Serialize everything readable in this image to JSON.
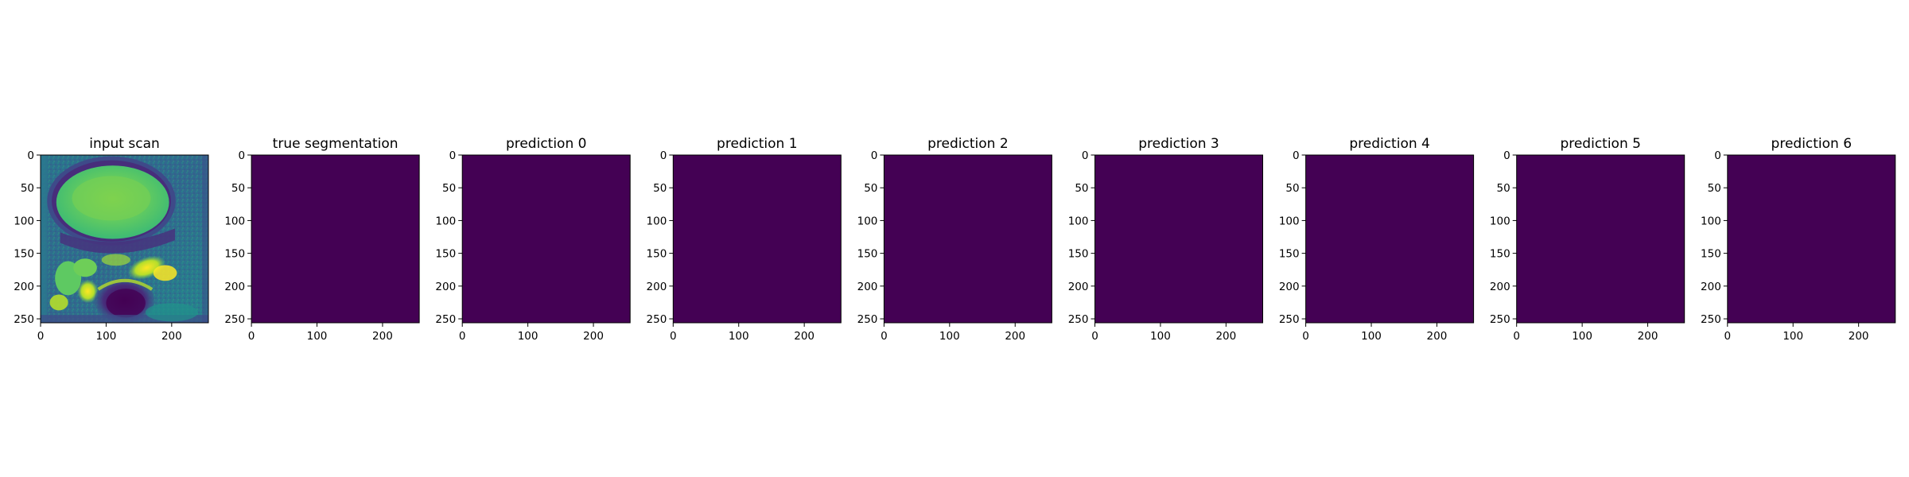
{
  "figure": {
    "panel_count": 9
  },
  "chart_data": [
    {
      "type": "heatmap",
      "title": "input scan",
      "image": "mri-scan",
      "colormap": "viridis",
      "xticks": [
        0,
        100,
        200
      ],
      "yticks": [
        0,
        50,
        100,
        150,
        200,
        250
      ],
      "xlim": [
        0,
        256
      ],
      "ylim": [
        256,
        0
      ]
    },
    {
      "type": "heatmap",
      "title": "true segmentation",
      "image": "uniform",
      "fill_color": "#440154",
      "xticks": [
        0,
        100,
        200
      ],
      "yticks": [
        0,
        50,
        100,
        150,
        200,
        250
      ],
      "xlim": [
        0,
        256
      ],
      "ylim": [
        256,
        0
      ]
    },
    {
      "type": "heatmap",
      "title": "prediction 0",
      "image": "uniform",
      "fill_color": "#440154",
      "xticks": [
        0,
        100,
        200
      ],
      "yticks": [
        0,
        50,
        100,
        150,
        200,
        250
      ],
      "xlim": [
        0,
        256
      ],
      "ylim": [
        256,
        0
      ]
    },
    {
      "type": "heatmap",
      "title": "prediction 1",
      "image": "uniform",
      "fill_color": "#440154",
      "xticks": [
        0,
        100,
        200
      ],
      "yticks": [
        0,
        50,
        100,
        150,
        200,
        250
      ],
      "xlim": [
        0,
        256
      ],
      "ylim": [
        256,
        0
      ]
    },
    {
      "type": "heatmap",
      "title": "prediction 2",
      "image": "uniform",
      "fill_color": "#440154",
      "xticks": [
        0,
        100,
        200
      ],
      "yticks": [
        0,
        50,
        100,
        150,
        200,
        250
      ],
      "xlim": [
        0,
        256
      ],
      "ylim": [
        256,
        0
      ]
    },
    {
      "type": "heatmap",
      "title": "prediction 3",
      "image": "uniform",
      "fill_color": "#440154",
      "xticks": [
        0,
        100,
        200
      ],
      "yticks": [
        0,
        50,
        100,
        150,
        200,
        250
      ],
      "xlim": [
        0,
        256
      ],
      "ylim": [
        256,
        0
      ]
    },
    {
      "type": "heatmap",
      "title": "prediction 4",
      "image": "uniform",
      "fill_color": "#440154",
      "xticks": [
        0,
        100,
        200
      ],
      "yticks": [
        0,
        50,
        100,
        150,
        200,
        250
      ],
      "xlim": [
        0,
        256
      ],
      "ylim": [
        256,
        0
      ]
    },
    {
      "type": "heatmap",
      "title": "prediction 5",
      "image": "uniform",
      "fill_color": "#440154",
      "xticks": [
        0,
        100,
        200
      ],
      "yticks": [
        0,
        50,
        100,
        150,
        200,
        250
      ],
      "xlim": [
        0,
        256
      ],
      "ylim": [
        256,
        0
      ]
    },
    {
      "type": "heatmap",
      "title": "prediction 6",
      "image": "uniform",
      "fill_color": "#440154",
      "xticks": [
        0,
        100,
        200
      ],
      "yticks": [
        0,
        50,
        100,
        150,
        200,
        250
      ],
      "xlim": [
        0,
        256
      ],
      "ylim": [
        256,
        0
      ]
    }
  ]
}
